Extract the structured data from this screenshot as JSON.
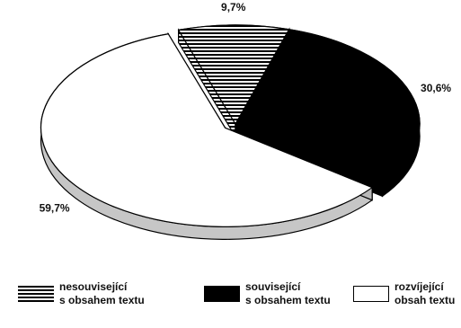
{
  "chart_data": {
    "type": "pie",
    "title": "",
    "series": [
      {
        "name": "nesouvisející s obsahem textu",
        "value": 9.7,
        "label": "9,7%",
        "fill": "stripes"
      },
      {
        "name": "související s obsahem textu",
        "value": 30.6,
        "label": "30,6%",
        "fill": "#000000"
      },
      {
        "name": "rozvíjející obsah textu",
        "value": 59.7,
        "label": "59,7%",
        "fill": "#ffffff"
      }
    ],
    "exploded_slice": "rozvíjející obsah textu",
    "legend_position": "bottom",
    "three_d": true
  },
  "legend": [
    {
      "line1": "nesouvisející",
      "line2": "s obsahem textu",
      "swatch": "stripes"
    },
    {
      "line1": "související",
      "line2": "s obsahem textu",
      "swatch": "#000000"
    },
    {
      "line1": "rozvíjející",
      "line2": "obsah textu",
      "swatch": "#ffffff"
    }
  ]
}
